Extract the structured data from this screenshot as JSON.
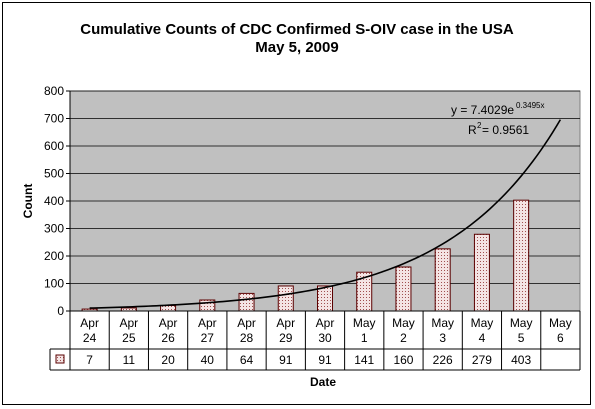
{
  "chart_data": {
    "type": "bar",
    "title": "Cumulative Counts of CDC Confirmed S-OIV case in the USA",
    "subtitle": "May 5, 2009",
    "xlabel": "Date",
    "ylabel": "Count",
    "ylim": [
      0,
      800
    ],
    "yticks": [
      0,
      100,
      200,
      300,
      400,
      500,
      600,
      700,
      800
    ],
    "grid": true,
    "categories": [
      [
        "Apr",
        "24"
      ],
      [
        "Apr",
        "25"
      ],
      [
        "Apr",
        "26"
      ],
      [
        "Apr",
        "27"
      ],
      [
        "Apr",
        "28"
      ],
      [
        "Apr",
        "29"
      ],
      [
        "Apr",
        "30"
      ],
      [
        "May",
        "1"
      ],
      [
        "May",
        "2"
      ],
      [
        "May",
        "3"
      ],
      [
        "May",
        "4"
      ],
      [
        "May",
        "5"
      ],
      [
        "May",
        "6"
      ]
    ],
    "values": [
      7,
      11,
      20,
      40,
      64,
      91,
      91,
      141,
      160,
      226,
      279,
      403,
      null
    ],
    "data_table": true,
    "trendline": {
      "type": "exponential",
      "a": 7.4029,
      "b": 0.3495,
      "equation_prefix": "y = 7.4029e",
      "equation_exponent": "0.3495x",
      "r2_prefix": "R",
      "r2_exp": "2",
      "r2_value": " = 0.9561"
    },
    "colors": {
      "plot_bg": "#c0c0c0",
      "bar_fill": "#f4e4e4",
      "bar_stroke": "#5a0000",
      "bar_dot": "#a05050",
      "line": "#000000"
    }
  }
}
